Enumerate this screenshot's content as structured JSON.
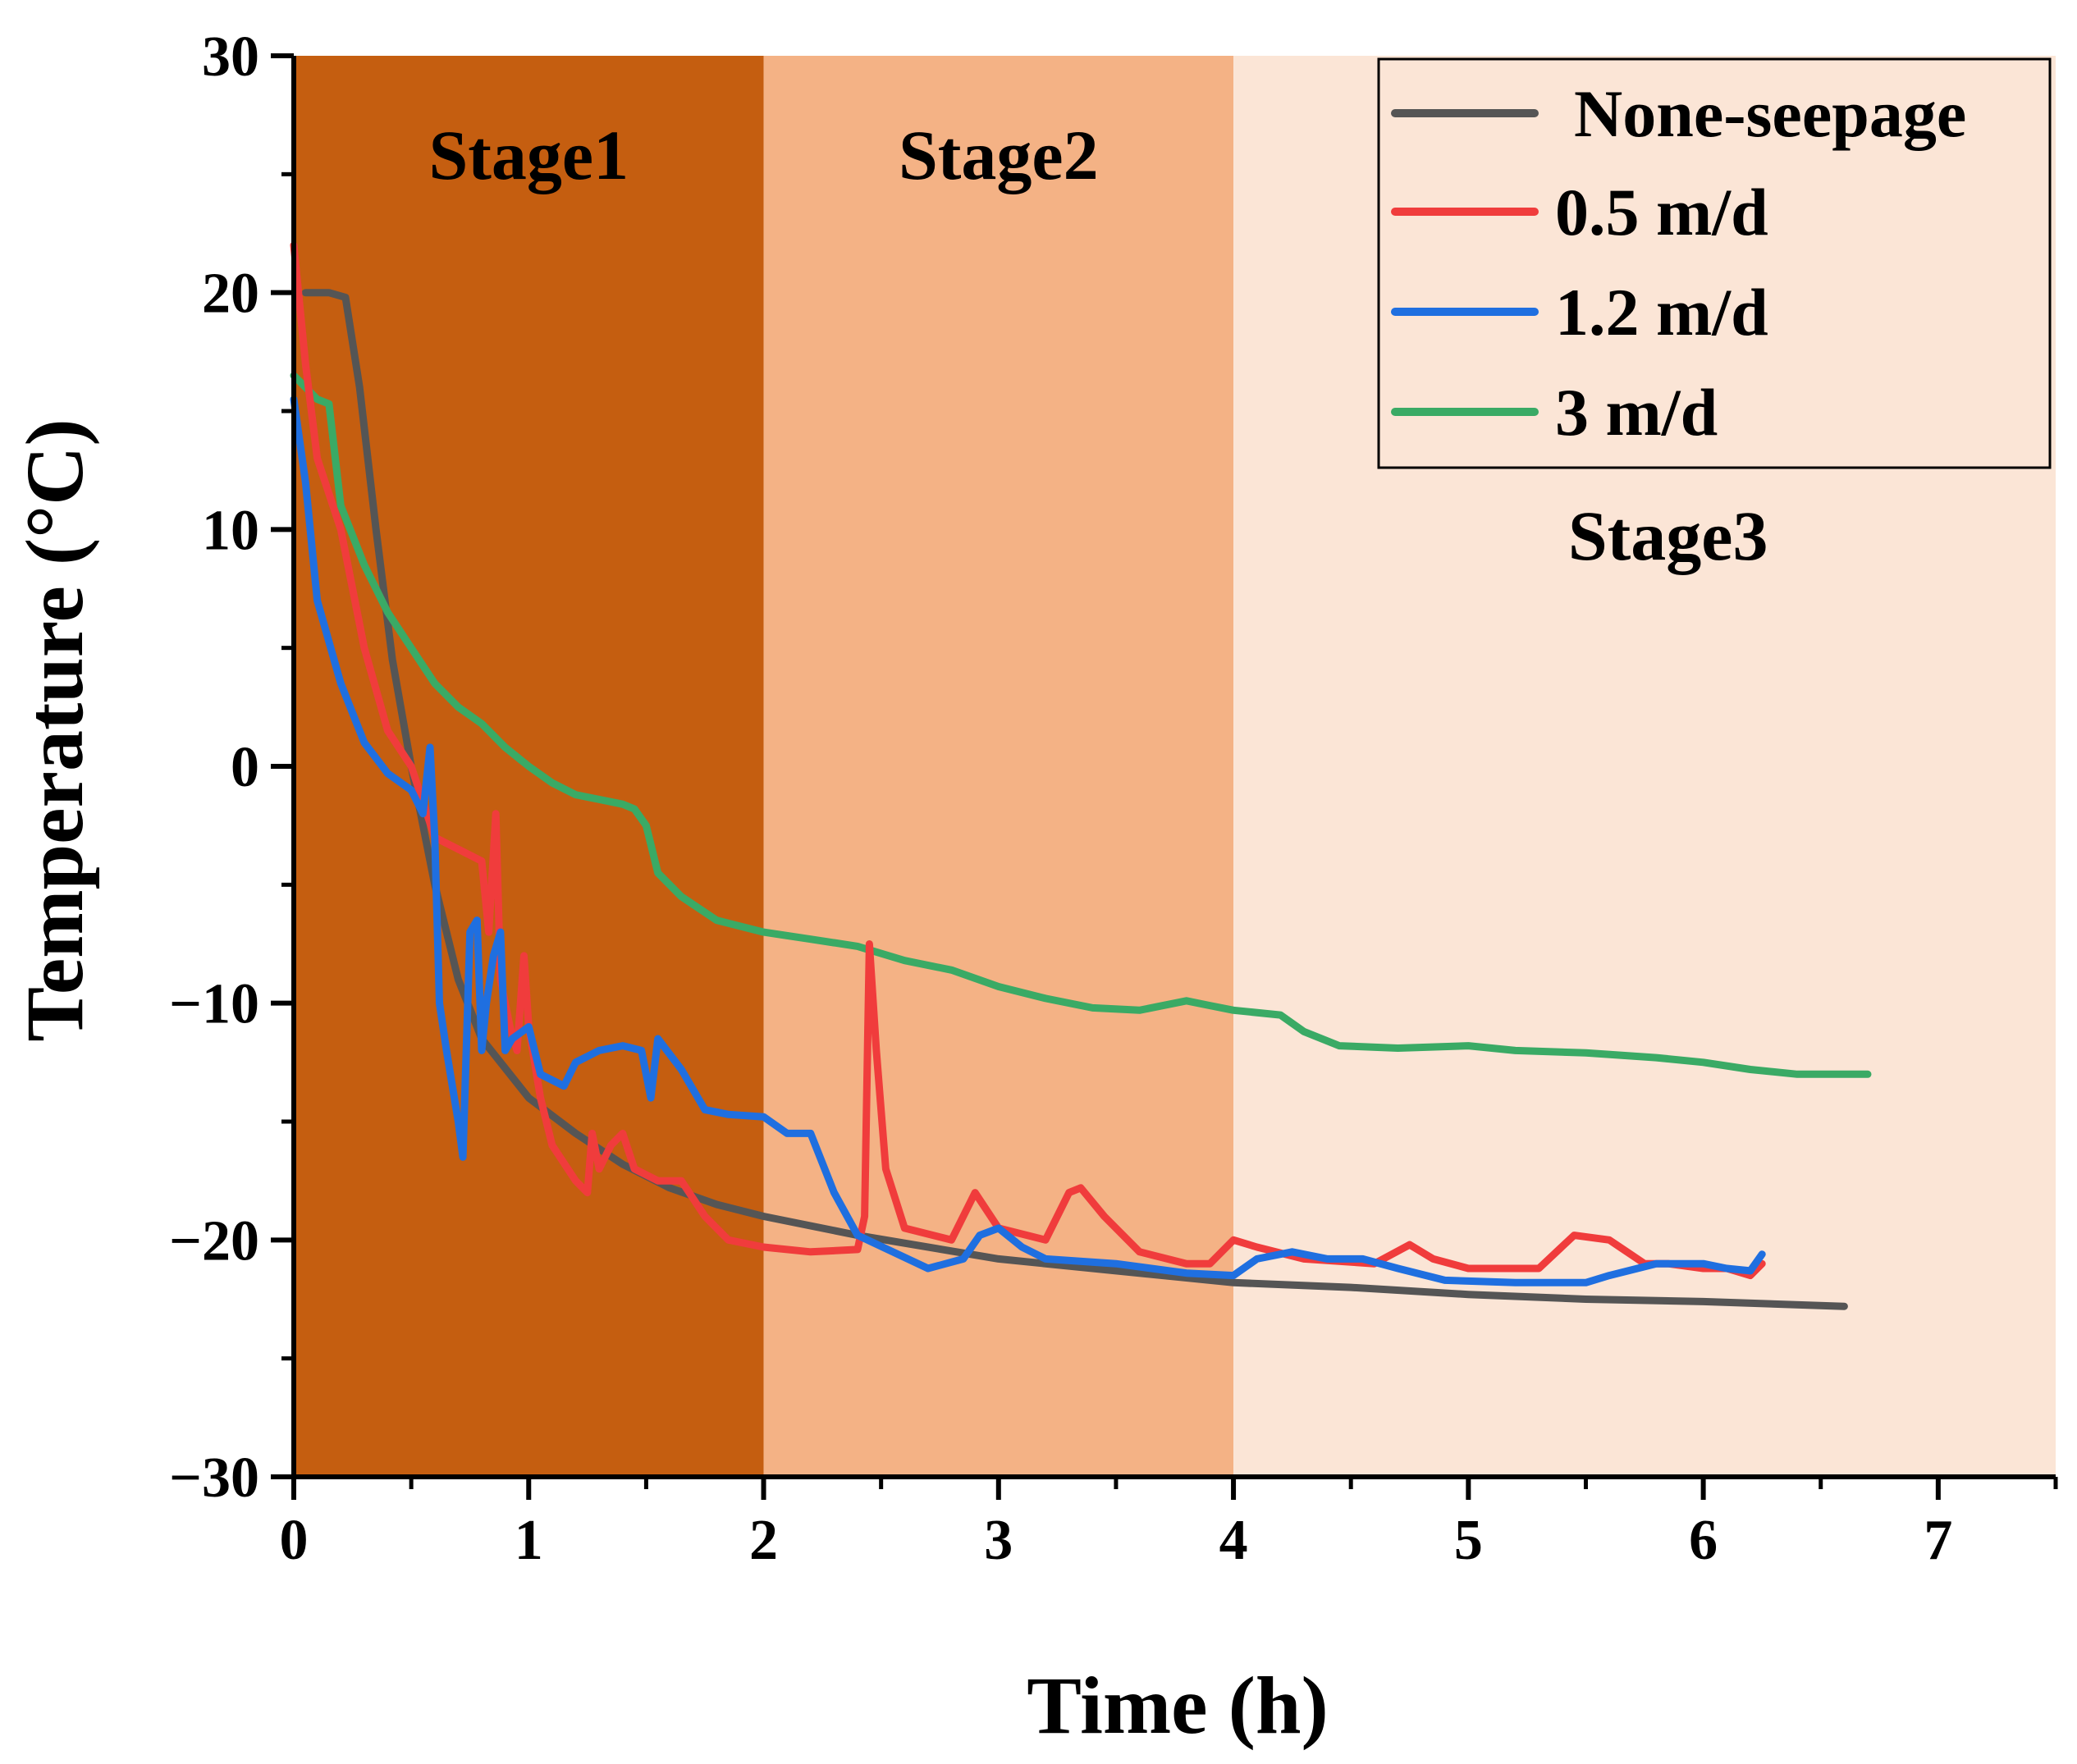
{
  "chart_data": {
    "type": "line",
    "title": "",
    "xlabel": "Time (h)",
    "ylabel": "Temperature (°C)",
    "xlim": [
      0,
      7.5
    ],
    "ylim": [
      -30,
      30
    ],
    "x_ticks": [
      0,
      1,
      2,
      3,
      4,
      5,
      6,
      7
    ],
    "x_tick_labels": [
      "0",
      "1",
      "2",
      "3",
      "4",
      "5",
      "6",
      "7"
    ],
    "y_ticks": [
      -30,
      -20,
      -10,
      0,
      10,
      20,
      30
    ],
    "y_tick_labels": [
      "−30",
      "−20",
      "−10",
      "0",
      "10",
      "20",
      "30"
    ],
    "grid": false,
    "legend_position": "top-right",
    "stages": [
      {
        "label": "Stage1",
        "x_start": 0,
        "x_end": 2,
        "color": "#c55e10"
      },
      {
        "label": "Stage2",
        "x_start": 2,
        "x_end": 4,
        "color": "#f4b285"
      },
      {
        "label": "Stage3",
        "x_start": 4,
        "x_end": 7.5,
        "color": "#fbe5d6"
      }
    ],
    "series": [
      {
        "name": "None-seepage",
        "legend_label": "None-seepage",
        "color": "#555555",
        "points": [
          [
            0.05,
            20
          ],
          [
            0.15,
            20
          ],
          [
            0.22,
            19.8
          ],
          [
            0.28,
            16
          ],
          [
            0.35,
            10
          ],
          [
            0.42,
            4.5
          ],
          [
            0.5,
            0
          ],
          [
            0.6,
            -5
          ],
          [
            0.7,
            -9
          ],
          [
            0.8,
            -11.5
          ],
          [
            1.0,
            -14
          ],
          [
            1.2,
            -15.5
          ],
          [
            1.4,
            -16.8
          ],
          [
            1.6,
            -17.8
          ],
          [
            1.8,
            -18.5
          ],
          [
            2.0,
            -19
          ],
          [
            2.4,
            -19.8
          ],
          [
            3.0,
            -20.8
          ],
          [
            3.5,
            -21.3
          ],
          [
            4.0,
            -21.8
          ],
          [
            4.5,
            -22
          ],
          [
            5.0,
            -22.3
          ],
          [
            5.5,
            -22.5
          ],
          [
            6.0,
            -22.6
          ],
          [
            6.6,
            -22.8
          ]
        ]
      },
      {
        "name": "0.5 m/d",
        "legend_label": "0.5 m/d",
        "color": "#f03c3c",
        "points": [
          [
            0,
            22
          ],
          [
            0.05,
            17
          ],
          [
            0.1,
            13
          ],
          [
            0.2,
            10
          ],
          [
            0.3,
            5
          ],
          [
            0.4,
            1.5
          ],
          [
            0.5,
            0
          ],
          [
            0.55,
            -1.5
          ],
          [
            0.6,
            -3
          ],
          [
            0.7,
            -3.5
          ],
          [
            0.8,
            -4
          ],
          [
            0.83,
            -7
          ],
          [
            0.86,
            -2
          ],
          [
            0.88,
            -9
          ],
          [
            0.92,
            -11
          ],
          [
            0.95,
            -12
          ],
          [
            0.98,
            -8
          ],
          [
            1.0,
            -11
          ],
          [
            1.05,
            -14
          ],
          [
            1.1,
            -16
          ],
          [
            1.2,
            -17.5
          ],
          [
            1.25,
            -18
          ],
          [
            1.27,
            -15.5
          ],
          [
            1.3,
            -17
          ],
          [
            1.35,
            -16
          ],
          [
            1.4,
            -15.5
          ],
          [
            1.45,
            -17
          ],
          [
            1.55,
            -17.5
          ],
          [
            1.65,
            -17.5
          ],
          [
            1.75,
            -19
          ],
          [
            1.85,
            -20
          ],
          [
            2.0,
            -20.3
          ],
          [
            2.2,
            -20.5
          ],
          [
            2.4,
            -20.4
          ],
          [
            2.43,
            -19
          ],
          [
            2.45,
            -7.5
          ],
          [
            2.48,
            -12
          ],
          [
            2.52,
            -17
          ],
          [
            2.6,
            -19.5
          ],
          [
            2.8,
            -20
          ],
          [
            2.9,
            -18
          ],
          [
            3.0,
            -19.5
          ],
          [
            3.2,
            -20
          ],
          [
            3.3,
            -18
          ],
          [
            3.35,
            -17.8
          ],
          [
            3.45,
            -19
          ],
          [
            3.6,
            -20.5
          ],
          [
            3.8,
            -21
          ],
          [
            3.9,
            -21
          ],
          [
            4.0,
            -20
          ],
          [
            4.1,
            -20.3
          ],
          [
            4.3,
            -20.8
          ],
          [
            4.6,
            -21
          ],
          [
            4.75,
            -20.2
          ],
          [
            4.85,
            -20.8
          ],
          [
            5.0,
            -21.2
          ],
          [
            5.3,
            -21.2
          ],
          [
            5.45,
            -19.8
          ],
          [
            5.6,
            -20
          ],
          [
            5.75,
            -21
          ],
          [
            5.85,
            -21
          ],
          [
            6.0,
            -21.2
          ],
          [
            6.1,
            -21.2
          ],
          [
            6.2,
            -21.5
          ],
          [
            6.25,
            -21
          ]
        ]
      },
      {
        "name": "1.2 m/d",
        "legend_label": "1.2 m/d",
        "color": "#1f6fe0",
        "points": [
          [
            0,
            15.5
          ],
          [
            0.05,
            12
          ],
          [
            0.1,
            7
          ],
          [
            0.2,
            3.5
          ],
          [
            0.3,
            1
          ],
          [
            0.4,
            -0.3
          ],
          [
            0.5,
            -1
          ],
          [
            0.55,
            -2
          ],
          [
            0.58,
            0.8
          ],
          [
            0.6,
            -3
          ],
          [
            0.62,
            -10
          ],
          [
            0.65,
            -12
          ],
          [
            0.7,
            -15
          ],
          [
            0.72,
            -16.5
          ],
          [
            0.75,
            -7
          ],
          [
            0.78,
            -6.5
          ],
          [
            0.8,
            -12
          ],
          [
            0.82,
            -10
          ],
          [
            0.85,
            -8
          ],
          [
            0.88,
            -7
          ],
          [
            0.9,
            -12
          ],
          [
            0.93,
            -11.5
          ],
          [
            1.0,
            -11
          ],
          [
            1.05,
            -13
          ],
          [
            1.15,
            -13.5
          ],
          [
            1.2,
            -12.5
          ],
          [
            1.3,
            -12
          ],
          [
            1.4,
            -11.8
          ],
          [
            1.48,
            -12
          ],
          [
            1.52,
            -14
          ],
          [
            1.55,
            -11.5
          ],
          [
            1.65,
            -12.8
          ],
          [
            1.75,
            -14.5
          ],
          [
            1.85,
            -14.7
          ],
          [
            2.0,
            -14.8
          ],
          [
            2.1,
            -15.5
          ],
          [
            2.2,
            -15.5
          ],
          [
            2.3,
            -18
          ],
          [
            2.4,
            -19.8
          ],
          [
            2.55,
            -20.5
          ],
          [
            2.7,
            -21.2
          ],
          [
            2.85,
            -20.8
          ],
          [
            2.92,
            -19.8
          ],
          [
            3.0,
            -19.5
          ],
          [
            3.1,
            -20.3
          ],
          [
            3.2,
            -20.8
          ],
          [
            3.5,
            -21
          ],
          [
            3.8,
            -21.4
          ],
          [
            4.0,
            -21.5
          ],
          [
            4.1,
            -20.8
          ],
          [
            4.25,
            -20.5
          ],
          [
            4.4,
            -20.8
          ],
          [
            4.55,
            -20.8
          ],
          [
            4.7,
            -21.2
          ],
          [
            4.9,
            -21.7
          ],
          [
            5.2,
            -21.8
          ],
          [
            5.5,
            -21.8
          ],
          [
            5.6,
            -21.5
          ],
          [
            5.8,
            -21
          ],
          [
            6.0,
            -21
          ],
          [
            6.1,
            -21.2
          ],
          [
            6.2,
            -21.3
          ],
          [
            6.25,
            -20.6
          ]
        ]
      },
      {
        "name": "3 m/d",
        "legend_label": "3 m/d",
        "color": "#3aaa65",
        "points": [
          [
            0,
            16.5
          ],
          [
            0.05,
            16
          ],
          [
            0.1,
            15.5
          ],
          [
            0.15,
            15.3
          ],
          [
            0.2,
            11
          ],
          [
            0.3,
            8.5
          ],
          [
            0.4,
            6.5
          ],
          [
            0.5,
            5
          ],
          [
            0.6,
            3.5
          ],
          [
            0.7,
            2.5
          ],
          [
            0.8,
            1.8
          ],
          [
            0.9,
            0.8
          ],
          [
            1.0,
            0
          ],
          [
            1.1,
            -0.7
          ],
          [
            1.2,
            -1.2
          ],
          [
            1.3,
            -1.4
          ],
          [
            1.4,
            -1.6
          ],
          [
            1.45,
            -1.8
          ],
          [
            1.5,
            -2.5
          ],
          [
            1.55,
            -4.5
          ],
          [
            1.65,
            -5.5
          ],
          [
            1.8,
            -6.5
          ],
          [
            2.0,
            -7
          ],
          [
            2.2,
            -7.3
          ],
          [
            2.4,
            -7.6
          ],
          [
            2.6,
            -8.2
          ],
          [
            2.8,
            -8.6
          ],
          [
            3.0,
            -9.3
          ],
          [
            3.2,
            -9.8
          ],
          [
            3.4,
            -10.2
          ],
          [
            3.6,
            -10.3
          ],
          [
            3.8,
            -9.9
          ],
          [
            3.9,
            -10.1
          ],
          [
            4.0,
            -10.3
          ],
          [
            4.2,
            -10.5
          ],
          [
            4.3,
            -11.2
          ],
          [
            4.45,
            -11.8
          ],
          [
            4.7,
            -11.9
          ],
          [
            5.0,
            -11.8
          ],
          [
            5.2,
            -12
          ],
          [
            5.5,
            -12.1
          ],
          [
            5.8,
            -12.3
          ],
          [
            6.0,
            -12.5
          ],
          [
            6.2,
            -12.8
          ],
          [
            6.4,
            -13
          ],
          [
            6.7,
            -13
          ]
        ]
      }
    ]
  }
}
